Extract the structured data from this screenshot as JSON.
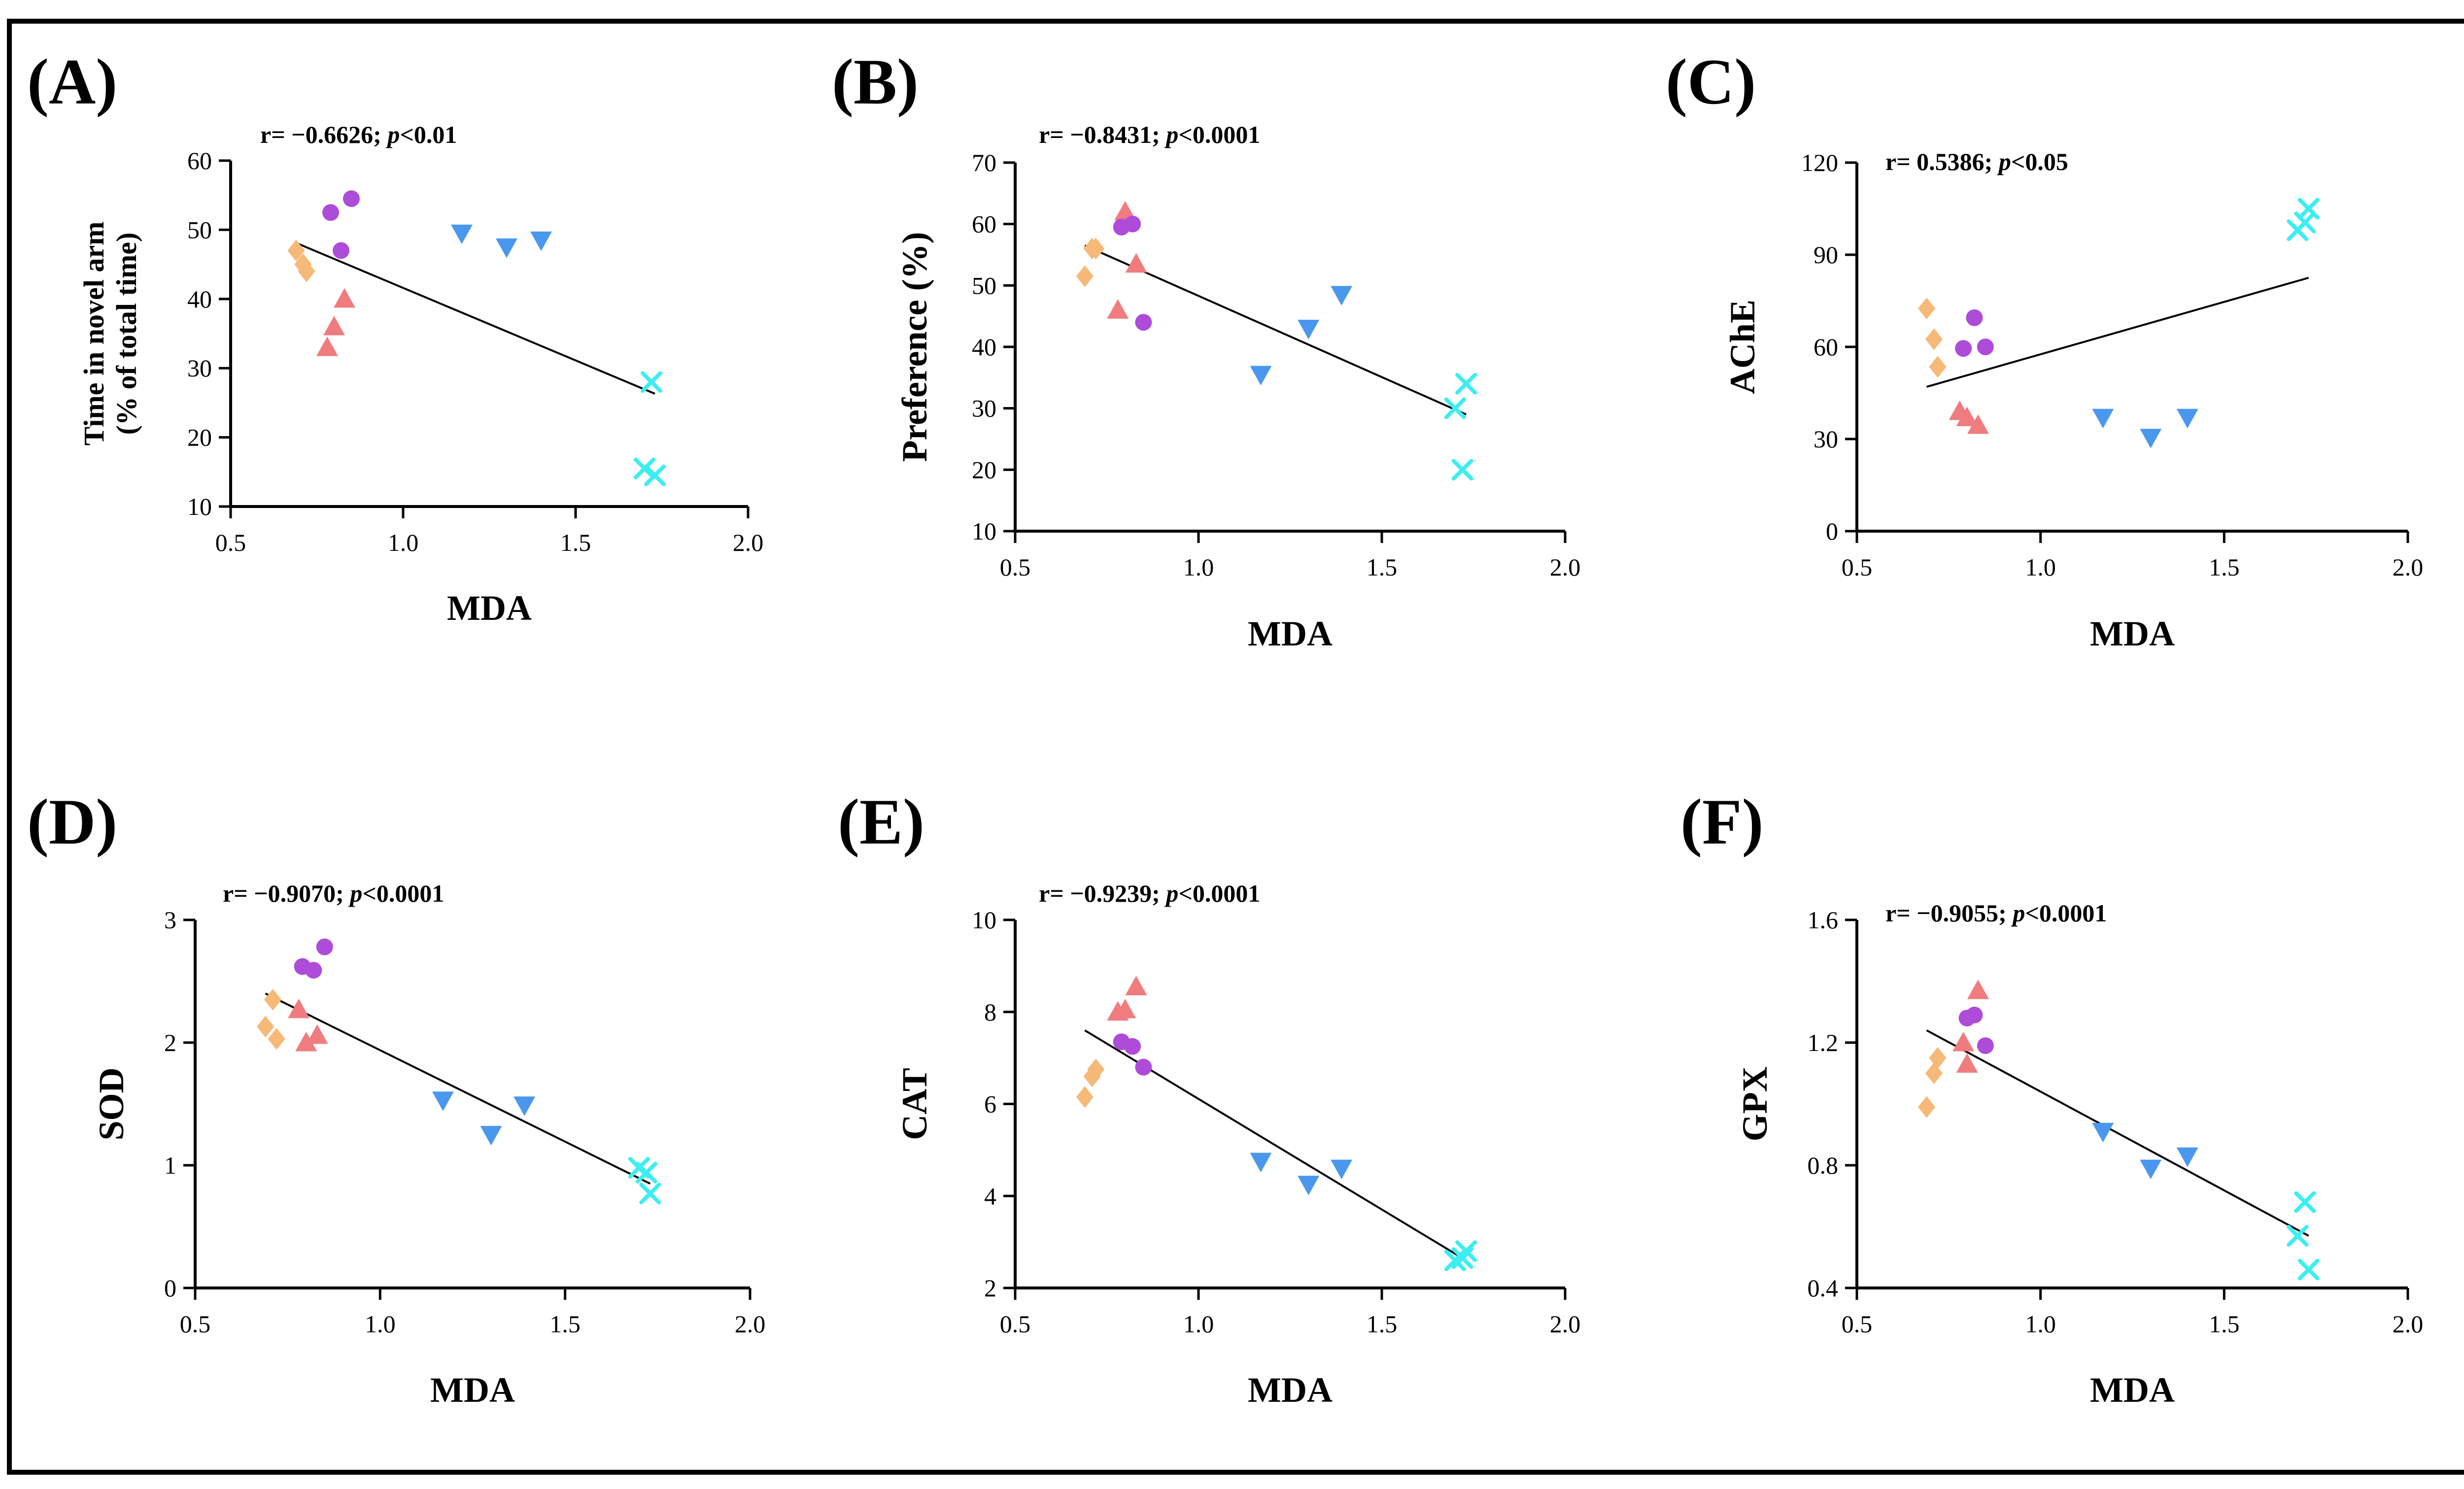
{
  "colors": {
    "diamond": "#F6B977",
    "triangle_up": "#F07C7F",
    "circle": "#AE4CD9",
    "triangle_down": "#4A98EE",
    "cross": "#3CEEF1",
    "fit_line": "#000000",
    "frame": "#000000"
  },
  "chart_data": [
    {
      "id": "A",
      "panel_label": "(A)",
      "type": "scatter",
      "stat_r": "r= −0.6626; ",
      "stat_p": "p",
      "stat_p_value": "<0.01",
      "xlabel": "MDA",
      "ylabel_lines": [
        "Time in novel arm",
        "(% of total time)"
      ],
      "xlim": [
        0.5,
        2.0
      ],
      "ylim": [
        10,
        60
      ],
      "xticks": [
        0.5,
        1.0,
        1.5,
        2.0
      ],
      "xtick_labels": [
        "0.5",
        "1.0",
        "1.5",
        "2.0"
      ],
      "yticks": [
        10,
        20,
        30,
        40,
        50,
        60
      ],
      "ytick_labels": [
        "10",
        "20",
        "30",
        "40",
        "50",
        "60"
      ],
      "fit": [
        [
          0.69,
          48.1
        ],
        [
          1.73,
          26.3
        ]
      ],
      "series": [
        {
          "marker": "diamond",
          "points": [
            [
              0.69,
              47.0
            ],
            [
              0.71,
              45.0
            ],
            [
              0.72,
              44.0
            ]
          ]
        },
        {
          "marker": "triangle_up",
          "points": [
            [
              0.78,
              33.0
            ],
            [
              0.8,
              36.0
            ],
            [
              0.83,
              40.0
            ]
          ]
        },
        {
          "marker": "circle",
          "points": [
            [
              0.79,
              52.5
            ],
            [
              0.82,
              47.0
            ],
            [
              0.85,
              54.5
            ]
          ]
        },
        {
          "marker": "triangle_down",
          "points": [
            [
              1.17,
              49.5
            ],
            [
              1.3,
              47.5
            ],
            [
              1.4,
              48.5
            ]
          ]
        },
        {
          "marker": "cross",
          "points": [
            [
              1.7,
              15.5
            ],
            [
              1.72,
              28.0
            ],
            [
              1.73,
              14.5
            ]
          ]
        }
      ]
    },
    {
      "id": "B",
      "panel_label": "(B)",
      "type": "scatter",
      "stat_r": "r= −0.8431; ",
      "stat_p": "p",
      "stat_p_value": "<0.0001",
      "xlabel": "MDA",
      "ylabel_lines": [
        "Preference (%)"
      ],
      "xlim": [
        0.5,
        2.0
      ],
      "ylim": [
        10,
        70
      ],
      "xticks": [
        0.5,
        1.0,
        1.5,
        2.0
      ],
      "xtick_labels": [
        "0.5",
        "1.0",
        "1.5",
        "2.0"
      ],
      "yticks": [
        10,
        20,
        30,
        40,
        50,
        60,
        70
      ],
      "ytick_labels": [
        "10",
        "20",
        "30",
        "40",
        "50",
        "60",
        "70"
      ],
      "fit": [
        [
          0.69,
          56.5
        ],
        [
          1.73,
          29.0
        ]
      ],
      "series": [
        {
          "marker": "diamond",
          "points": [
            [
              0.69,
              51.5
            ],
            [
              0.71,
              56.0
            ],
            [
              0.72,
              56.0
            ]
          ]
        },
        {
          "marker": "triangle_up",
          "points": [
            [
              0.78,
              46.0
            ],
            [
              0.8,
              62.0
            ],
            [
              0.83,
              53.5
            ]
          ]
        },
        {
          "marker": "circle",
          "points": [
            [
              0.79,
              59.5
            ],
            [
              0.82,
              60.0
            ],
            [
              0.85,
              44.0
            ]
          ]
        },
        {
          "marker": "triangle_down",
          "points": [
            [
              1.17,
              35.5
            ],
            [
              1.3,
              43.0
            ],
            [
              1.39,
              48.5
            ]
          ]
        },
        {
          "marker": "cross",
          "points": [
            [
              1.7,
              30.0
            ],
            [
              1.72,
              20.0
            ],
            [
              1.73,
              34.0
            ]
          ]
        }
      ]
    },
    {
      "id": "C",
      "panel_label": "(C)",
      "type": "scatter",
      "stat_r": "r= 0.5386; ",
      "stat_p": "p",
      "stat_p_value": "<0.05",
      "xlabel": "MDA",
      "ylabel_lines": [
        "AChE"
      ],
      "xlim": [
        0.5,
        2.0
      ],
      "ylim": [
        0,
        120
      ],
      "xticks": [
        0.5,
        1.0,
        1.5,
        2.0
      ],
      "xtick_labels": [
        "0.5",
        "1.0",
        "1.5",
        "2.0"
      ],
      "yticks": [
        0,
        30,
        60,
        90,
        120
      ],
      "ytick_labels": [
        "0",
        "30",
        "60",
        "90",
        "120"
      ],
      "fit": [
        [
          0.69,
          47.0
        ],
        [
          1.73,
          82.5
        ]
      ],
      "series": [
        {
          "marker": "diamond",
          "points": [
            [
              0.69,
              72.5
            ],
            [
              0.71,
              62.5
            ],
            [
              0.72,
              53.5
            ]
          ]
        },
        {
          "marker": "triangle_up",
          "points": [
            [
              0.78,
              39.0
            ],
            [
              0.8,
              37.0
            ],
            [
              0.83,
              34.5
            ]
          ]
        },
        {
          "marker": "circle",
          "points": [
            [
              0.79,
              59.5
            ],
            [
              0.82,
              69.5
            ],
            [
              0.85,
              60.0
            ]
          ]
        },
        {
          "marker": "triangle_down",
          "points": [
            [
              1.17,
              37.0
            ],
            [
              1.3,
              30.5
            ],
            [
              1.4,
              37.0
            ]
          ]
        },
        {
          "marker": "cross",
          "points": [
            [
              1.7,
              98.0
            ],
            [
              1.72,
              100.5
            ],
            [
              1.73,
              105.0
            ]
          ]
        }
      ]
    },
    {
      "id": "D",
      "panel_label": "(D)",
      "type": "scatter",
      "stat_r": "r= −0.9070; ",
      "stat_p": "p",
      "stat_p_value": "<0.0001",
      "xlabel": "MDA",
      "ylabel_lines": [
        "SOD"
      ],
      "xlim": [
        0.5,
        2.0
      ],
      "ylim": [
        0,
        3
      ],
      "xticks": [
        0.5,
        1.0,
        1.5,
        2.0
      ],
      "xtick_labels": [
        "0.5",
        "1.0",
        "1.5",
        "2.0"
      ],
      "yticks": [
        0,
        1,
        2,
        3
      ],
      "ytick_labels": [
        "0",
        "1",
        "2",
        "3"
      ],
      "fit": [
        [
          0.69,
          2.4
        ],
        [
          1.73,
          0.85
        ]
      ],
      "series": [
        {
          "marker": "diamond",
          "points": [
            [
              0.69,
              2.13
            ],
            [
              0.71,
              2.35
            ],
            [
              0.72,
              2.03
            ]
          ]
        },
        {
          "marker": "triangle_up",
          "points": [
            [
              0.78,
              2.27
            ],
            [
              0.8,
              2.0
            ],
            [
              0.83,
              2.06
            ]
          ]
        },
        {
          "marker": "circle",
          "points": [
            [
              0.79,
              2.62
            ],
            [
              0.82,
              2.59
            ],
            [
              0.85,
              2.78
            ]
          ]
        },
        {
          "marker": "triangle_down",
          "points": [
            [
              1.17,
              1.53
            ],
            [
              1.3,
              1.25
            ],
            [
              1.39,
              1.49
            ]
          ]
        },
        {
          "marker": "cross",
          "points": [
            [
              1.7,
              0.98
            ],
            [
              1.72,
              0.94
            ],
            [
              1.73,
              0.77
            ]
          ]
        }
      ]
    },
    {
      "id": "E",
      "panel_label": "(E)",
      "type": "scatter",
      "stat_r": "r= −0.9239; ",
      "stat_p": "p",
      "stat_p_value": "<0.0001",
      "xlabel": "MDA",
      "ylabel_lines": [
        "CAT"
      ],
      "xlim": [
        0.5,
        2.0
      ],
      "ylim": [
        2,
        10
      ],
      "xticks": [
        0.5,
        1.0,
        1.5,
        2.0
      ],
      "xtick_labels": [
        "0.5",
        "1.0",
        "1.5",
        "2.0"
      ],
      "yticks": [
        2,
        4,
        6,
        8,
        10
      ],
      "ytick_labels": [
        "2",
        "4",
        "6",
        "8",
        "10"
      ],
      "fit": [
        [
          0.69,
          7.6
        ],
        [
          1.73,
          2.6
        ]
      ],
      "series": [
        {
          "marker": "diamond",
          "points": [
            [
              0.69,
              6.15
            ],
            [
              0.71,
              6.6
            ],
            [
              0.72,
              6.75
            ]
          ]
        },
        {
          "marker": "triangle_up",
          "points": [
            [
              0.78,
              8.0
            ],
            [
              0.8,
              8.05
            ],
            [
              0.83,
              8.55
            ]
          ]
        },
        {
          "marker": "circle",
          "points": [
            [
              0.79,
              7.35
            ],
            [
              0.82,
              7.25
            ],
            [
              0.85,
              6.8
            ]
          ]
        },
        {
          "marker": "triangle_down",
          "points": [
            [
              1.17,
              4.75
            ],
            [
              1.3,
              4.25
            ],
            [
              1.39,
              4.6
            ]
          ]
        },
        {
          "marker": "cross",
          "points": [
            [
              1.7,
              2.6
            ],
            [
              1.72,
              2.65
            ],
            [
              1.73,
              2.8
            ]
          ]
        }
      ]
    },
    {
      "id": "F",
      "panel_label": "(F)",
      "type": "scatter",
      "stat_r": "r= −0.9055; ",
      "stat_p": "p",
      "stat_p_value": "<0.0001",
      "xlabel": "MDA",
      "ylabel_lines": [
        "GPX"
      ],
      "xlim": [
        0.5,
        2.0
      ],
      "ylim": [
        0.4,
        1.6
      ],
      "xticks": [
        0.5,
        1.0,
        1.5,
        2.0
      ],
      "xtick_labels": [
        "0.5",
        "1.0",
        "1.5",
        "2.0"
      ],
      "yticks": [
        0.4,
        0.8,
        1.2,
        1.6
      ],
      "ytick_labels": [
        "0.4",
        "0.8",
        "1.2",
        "1.6"
      ],
      "fit": [
        [
          0.69,
          1.24
        ],
        [
          1.73,
          0.57
        ]
      ],
      "series": [
        {
          "marker": "diamond",
          "points": [
            [
              0.69,
              0.99
            ],
            [
              0.71,
              1.1
            ],
            [
              0.72,
              1.15
            ]
          ]
        },
        {
          "marker": "triangle_up",
          "points": [
            [
              0.79,
              1.2
            ],
            [
              0.8,
              1.13
            ],
            [
              0.83,
              1.37
            ]
          ]
        },
        {
          "marker": "circle",
          "points": [
            [
              0.8,
              1.28
            ],
            [
              0.82,
              1.29
            ],
            [
              0.85,
              1.19
            ]
          ]
        },
        {
          "marker": "triangle_down",
          "points": [
            [
              1.17,
              0.91
            ],
            [
              1.3,
              0.79
            ],
            [
              1.4,
              0.83
            ]
          ]
        },
        {
          "marker": "cross",
          "points": [
            [
              1.7,
              0.57
            ],
            [
              1.72,
              0.68
            ],
            [
              1.73,
              0.46
            ]
          ]
        }
      ]
    }
  ]
}
